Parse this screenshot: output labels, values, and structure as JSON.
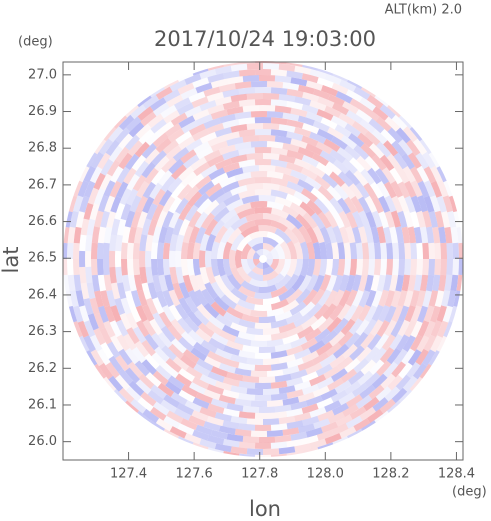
{
  "chart_data": {
    "type": "ppi",
    "altitude_label": "ALT(km) 2.0",
    "title": "2017/10/24 19:03:00",
    "x_label": "lon",
    "y_label": "lat",
    "x_unit": "(deg)",
    "y_unit": "(deg)",
    "xlim": [
      127.2,
      128.42
    ],
    "ylim": [
      25.95,
      27.035
    ],
    "xticks": [
      127.4,
      127.6,
      127.8,
      {
        "value": 128,
        "label": "128.0"
      },
      128.2,
      128.4
    ],
    "yticks": [
      {
        "value": 26,
        "label": "26.0"
      },
      26.1,
      26.2,
      26.3,
      26.4,
      26.5,
      26.6,
      26.7,
      26.8,
      26.9,
      {
        "value": 27,
        "label": "27.0"
      }
    ],
    "colors": [
      "#f4a3a8",
      "#a9acf2"
    ]
  }
}
